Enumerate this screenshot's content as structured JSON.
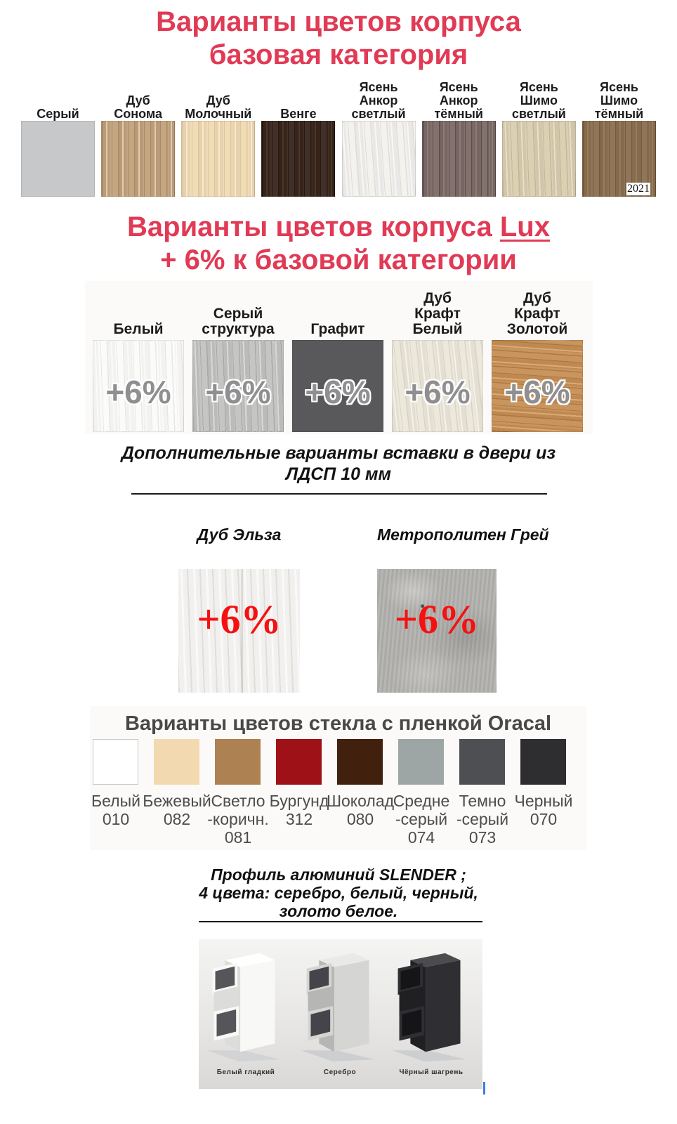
{
  "colors": {
    "accent_red": "#e13a55",
    "plus_red": "#f51111",
    "plus_gray": "#8f8f91",
    "panel_bg": "#fbfaf8",
    "oracal_title_gray": "#484848",
    "caret_blue": "#3f7ed9"
  },
  "section_base": {
    "title_lines": [
      "Варианты цветов корпуса",
      "базовая категория"
    ],
    "year_note": "2021",
    "swatches": [
      {
        "label": "Серый",
        "texture": "flat",
        "base": "#c6c8ca"
      },
      {
        "label": "Дуб\nСонома",
        "texture": "wood",
        "angle": "90deg",
        "base": "#c0a17b",
        "grain": "rgba(140,105,65,0.45)",
        "grain2": "rgba(255,242,220,0.55)"
      },
      {
        "label": "Дуб\nМолочный",
        "texture": "wood",
        "angle": "90deg",
        "base": "#efdab3",
        "grain": "rgba(205,173,122,0.45)",
        "grain2": "rgba(255,248,230,0.6)"
      },
      {
        "label": "Венге",
        "texture": "wood",
        "angle": "90deg",
        "base": "#38251c",
        "grain": "rgba(14,7,3,0.55)",
        "grain2": "rgba(112,80,58,0.4)"
      },
      {
        "label": "Ясень\nАнкор\nсветлый",
        "texture": "wood",
        "angle": "86deg",
        "base": "#f3f1ee",
        "grain": "rgba(203,198,190,0.5)",
        "grain2": "rgba(255,255,255,0.65)"
      },
      {
        "label": "Ясень\nАнкор\nтёмный",
        "texture": "wood",
        "angle": "90deg",
        "base": "#7b6a66",
        "grain": "rgba(62,48,45,0.55)",
        "grain2": "rgba(165,150,145,0.45)"
      },
      {
        "label": "Ясень\nШимо\nсветлый",
        "texture": "wood",
        "angle": "88deg",
        "base": "#d9cdaf",
        "grain": "rgba(176,158,120,0.5)",
        "grain2": "rgba(246,240,222,0.6)"
      },
      {
        "label": "Ясень\nШимо\nтёмный",
        "texture": "wood",
        "angle": "90deg",
        "base": "#8a6e50",
        "grain": "rgba(92,67,42,0.55)",
        "grain2": "rgba(172,142,106,0.5)"
      }
    ]
  },
  "section_lux": {
    "title_prefix": "Варианты цветов корпуса ",
    "title_underlined": "Lux",
    "title_line2": "+ 6% к базовой категории",
    "plus_label": "+6%",
    "swatches": [
      {
        "label": "Белый",
        "texture": "wood",
        "angle": "88deg",
        "base": "#fbfbfa",
        "grain": "rgba(218,216,212,0.55)",
        "grain2": "rgba(255,255,255,0.6)"
      },
      {
        "label": "Серый\nструктура",
        "texture": "wood",
        "angle": "88deg",
        "base": "#c2c2c1",
        "grain": "rgba(148,148,146,0.55)",
        "grain2": "rgba(236,236,234,0.6)"
      },
      {
        "label": "Графит",
        "texture": "flat",
        "base": "#59595b"
      },
      {
        "label": "Дуб\nКрафт\nБелый",
        "texture": "wood",
        "angle": "84deg",
        "base": "#ebe7da",
        "grain": "rgba(203,196,176,0.55)",
        "grain2": "rgba(253,251,245,0.7)"
      },
      {
        "label": "Дуб\nКрафт\nЗолотой",
        "texture": "wood",
        "angle": "4deg",
        "base": "#c68f55",
        "grain": "rgba(148,93,43,0.5)",
        "grain2": "rgba(238,192,140,0.6)"
      }
    ]
  },
  "section_inserts": {
    "heading_lines": [
      "Дополнительные варианты вставки в двери из",
      "ЛДСП 10 мм"
    ],
    "plus_label": "+6%",
    "swatches": [
      {
        "label": "Дуб Эльза",
        "texture": "elza",
        "base": "#f1f0ee",
        "grain": "rgba(208,205,199,0.5)",
        "grain2": "rgba(255,255,255,0.6)"
      },
      {
        "label": "Метрополитен Грей",
        "texture": "concrete",
        "base": "#b3b2af"
      }
    ]
  },
  "section_oracal": {
    "title": "Варианты цветов стекла с пленкой Oracal",
    "tiles": [
      {
        "label": "Белый\n010",
        "color": "#ffffff",
        "border": "#c8c8c8"
      },
      {
        "label": "Бежевый\n082",
        "color": "#f2d9af"
      },
      {
        "label": "Светло\n-коричн.\n081",
        "color": "#ad8152"
      },
      {
        "label": "Бургунд\n312",
        "color": "#9e1117"
      },
      {
        "label": "Шоколад\n080",
        "color": "#41200e"
      },
      {
        "label": "Средне\n-серый\n074",
        "color": "#9ea6a5"
      },
      {
        "label": "Темно\n-серый\n073",
        "color": "#4d4f52"
      },
      {
        "label": "Черный\n070",
        "color": "#2e2d2f"
      }
    ]
  },
  "section_profile": {
    "heading_lines": [
      "Профиль алюминий SLENDER ;",
      "4 цвета: серебро, белый, черный,",
      "золото белое."
    ],
    "profiles": [
      {
        "label": "Белый гладкий",
        "front": "#f8f8f7",
        "top": "#ffffff",
        "side": "#dcdcda",
        "dark": "#55555a",
        "foot": "#d2d3d5"
      },
      {
        "label": "Серебро",
        "front": "#d5d5d3",
        "top": "#e9e9e7",
        "side": "#b6b6b4",
        "dark": "#44444a",
        "foot": "#cdced0"
      },
      {
        "label": "Чёрный шагрень",
        "front": "#2f2f33",
        "top": "#4c4c50",
        "side": "#202023",
        "dark": "#151517",
        "foot": "#cdced0"
      }
    ]
  }
}
